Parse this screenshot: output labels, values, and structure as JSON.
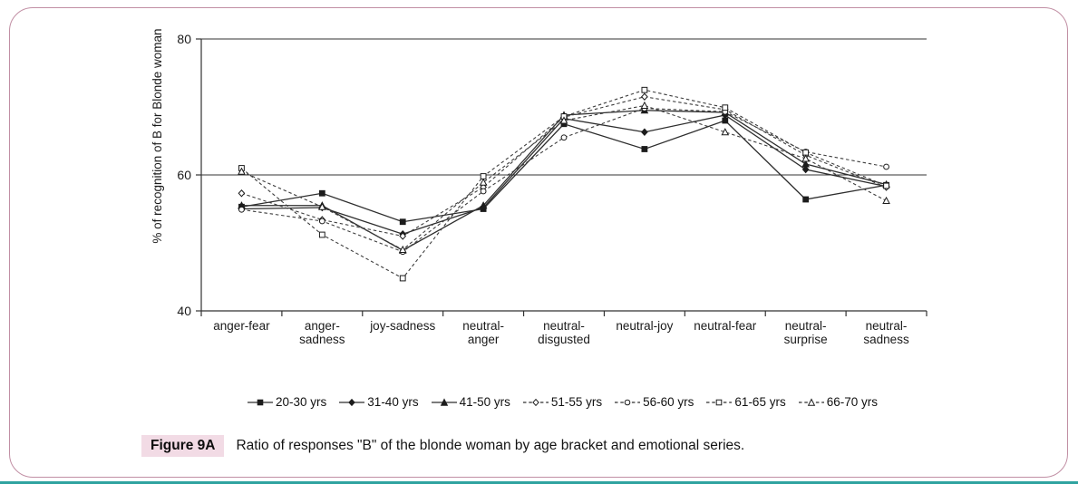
{
  "figure": {
    "label": "Figure 9A",
    "caption": "Ratio of responses \"B\" of the blonde woman by age bracket and emotional series."
  },
  "colors": {
    "panel_border": "#c18fa4",
    "figure_label_bg": "#f2dbe5",
    "bottom_bar": "#2fa3a0",
    "line_color": "#2e2e2e"
  },
  "chart_data": {
    "type": "line",
    "title": "",
    "xlabel": "",
    "ylabel": "% of recognition of B for Blonde woman",
    "ylim": [
      40,
      80
    ],
    "yticks": [
      40,
      60,
      80
    ],
    "gridlines": [
      60,
      80
    ],
    "grid": "horizontal-only",
    "legend_position": "bottom",
    "categories": [
      "anger-fear",
      "anger-\nsadness",
      "joy-sadness",
      "neutral-\nanger",
      "neutral-\ndisgusted",
      "neutral-joy",
      "neutral-fear",
      "neutral-\nsurprise",
      "neutral-\nsadness"
    ],
    "series": [
      {
        "name": "20-30 yrs",
        "line": "solid",
        "marker": "filled-square",
        "values": [
          55.3,
          57.3,
          53.1,
          55.0,
          67.5,
          63.8,
          68.0,
          56.4,
          58.5
        ]
      },
      {
        "name": "31-40 yrs",
        "line": "solid",
        "marker": "filled-diamond",
        "values": [
          55.0,
          55.2,
          51.3,
          55.2,
          68.3,
          66.3,
          68.8,
          60.8,
          58.3
        ]
      },
      {
        "name": "41-50 yrs",
        "line": "solid",
        "marker": "filled-triangle",
        "values": [
          55.5,
          55.5,
          48.9,
          55.5,
          68.8,
          69.5,
          69.2,
          61.6,
          58.6
        ]
      },
      {
        "name": "51-55 yrs",
        "line": "dashed",
        "marker": "open-diamond",
        "values": [
          57.3,
          53.4,
          51.0,
          58.2,
          68.5,
          71.5,
          69.6,
          62.9,
          58.2
        ]
      },
      {
        "name": "56-60 yrs",
        "line": "dashed",
        "marker": "open-circle",
        "values": [
          54.9,
          53.2,
          48.7,
          57.6,
          65.5,
          69.8,
          69.3,
          63.4,
          61.2
        ]
      },
      {
        "name": "61-65 yrs",
        "line": "dashed",
        "marker": "open-square",
        "values": [
          61.0,
          51.2,
          44.8,
          59.8,
          68.6,
          72.5,
          69.9,
          63.3,
          58.4
        ]
      },
      {
        "name": "66-70 yrs",
        "line": "dashed",
        "marker": "open-triangle",
        "values": [
          60.5,
          55.3,
          49.0,
          58.9,
          68.0,
          70.2,
          66.3,
          62.4,
          56.2
        ]
      }
    ]
  }
}
